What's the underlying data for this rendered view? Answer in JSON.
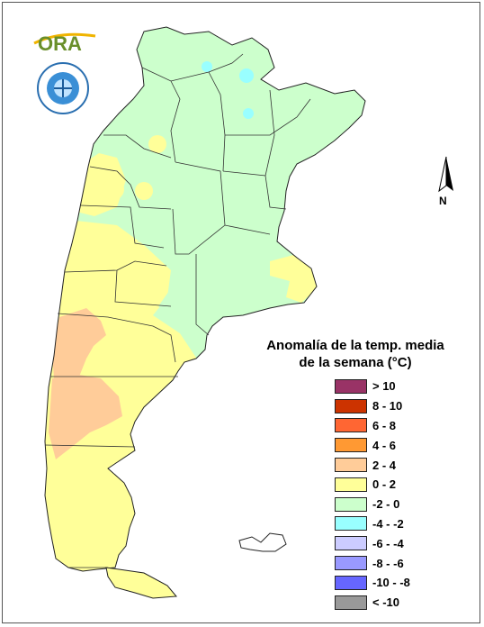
{
  "title_line1": "Anomalía de la temp. media",
  "title_line2": "de la semana (°C)",
  "logo_text": "ORA",
  "north_label": "N",
  "legend": [
    {
      "label": "> 10",
      "color": "#993366"
    },
    {
      "label": "8 - 10",
      "color": "#cc3300"
    },
    {
      "label": "6 - 8",
      "color": "#ff6633"
    },
    {
      "label": "4 - 6",
      "color": "#ff9933"
    },
    {
      "label": "2 - 4",
      "color": "#ffcc99"
    },
    {
      "label": "0 - 2",
      "color": "#ffff99"
    },
    {
      "label": "-2 - 0",
      "color": "#ccffcc"
    },
    {
      "label": "-4 - -2",
      "color": "#99ffff"
    },
    {
      "label": "-6 - -4",
      "color": "#ccccff"
    },
    {
      "label": "-8 - -6",
      "color": "#9999ff"
    },
    {
      "label": "-10 - -8",
      "color": "#6666ff"
    },
    {
      "label": "< -10",
      "color": "#999999"
    }
  ]
}
